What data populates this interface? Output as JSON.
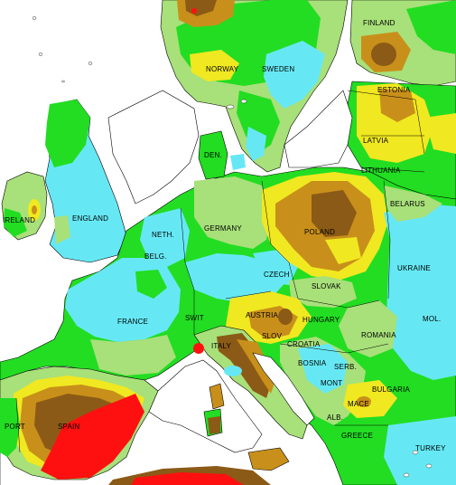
{
  "palette": {
    "sea": "#ffffff",
    "cyan": "#66e8f4",
    "lightgreen": "#a8e07a",
    "green": "#22dd22",
    "yellow": "#f0e820",
    "lightbrown": "#c8901a",
    "brown": "#8b5a16",
    "red": "#ff1010",
    "border": "#000000"
  },
  "labels": {
    "finland": "FINLAND",
    "norway": "NORWAY",
    "sweden": "SWEDEN",
    "estonia": "ESTONIA",
    "latvia": "LATVIA",
    "lithuania": "LITHUANIA",
    "den": "DEN.",
    "belarus": "BELARUS",
    "ireland": "IRELAND",
    "england": "ENGLAND",
    "netherlands": "NETH.",
    "germany": "GERMANY",
    "poland": "POLAND",
    "belgium": "BELG.",
    "czech": "CZECH",
    "ukraine": "UKRAINE",
    "slovakia": "SLOVAK",
    "austria": "AUSTRIA",
    "hungary": "HUNGARY",
    "switzerland": "SWIT",
    "france": "FRANCE",
    "moldova": "MOL.",
    "slovenia": "SLOV",
    "romania": "ROMANIA",
    "italy": "ITALY",
    "croatia": "CROATIA",
    "bosnia": "BOSNIA",
    "serbia": "SERB.",
    "bulgaria": "BULGARIA",
    "macedonia": "MACE",
    "montenegro": "MONT",
    "portugal": "PORT",
    "spain": "SPAIN",
    "albania": "ALB.",
    "greece": "GREECE",
    "turkey": "TURKEY"
  }
}
